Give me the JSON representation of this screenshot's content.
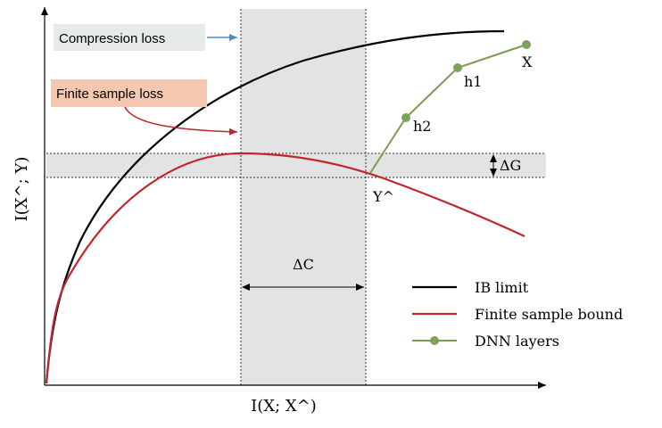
{
  "diagram": {
    "axes": {
      "x_label": "I(X; X^)",
      "y_label": "I(X^; Y)"
    },
    "annotations": {
      "compression_loss": "Compression loss",
      "finite_sample_loss": "Finite sample loss",
      "delta_c": "ΔC",
      "delta_g": "ΔG"
    },
    "points": {
      "x": "X",
      "h1": "h1",
      "h2": "h2",
      "y_hat": "Y^"
    },
    "legend": {
      "items": [
        {
          "label": "IB limit",
          "color": "#000000"
        },
        {
          "label": "Finite sample bound",
          "color": "#c0262a"
        },
        {
          "label": "DNN layers",
          "color": "#7a9a55"
        }
      ]
    },
    "colors": {
      "ib_limit": "#000000",
      "finite_sample_bound": "#c0262a",
      "dnn_layers": "#7a9a55",
      "dnn_marker": "#7fa25a",
      "band_fill": "#e3e3e3",
      "compression_box": "#e6eaeb",
      "finite_sample_box": "#f4c7ae",
      "arrow_blue": "#4a8cc7"
    }
  }
}
